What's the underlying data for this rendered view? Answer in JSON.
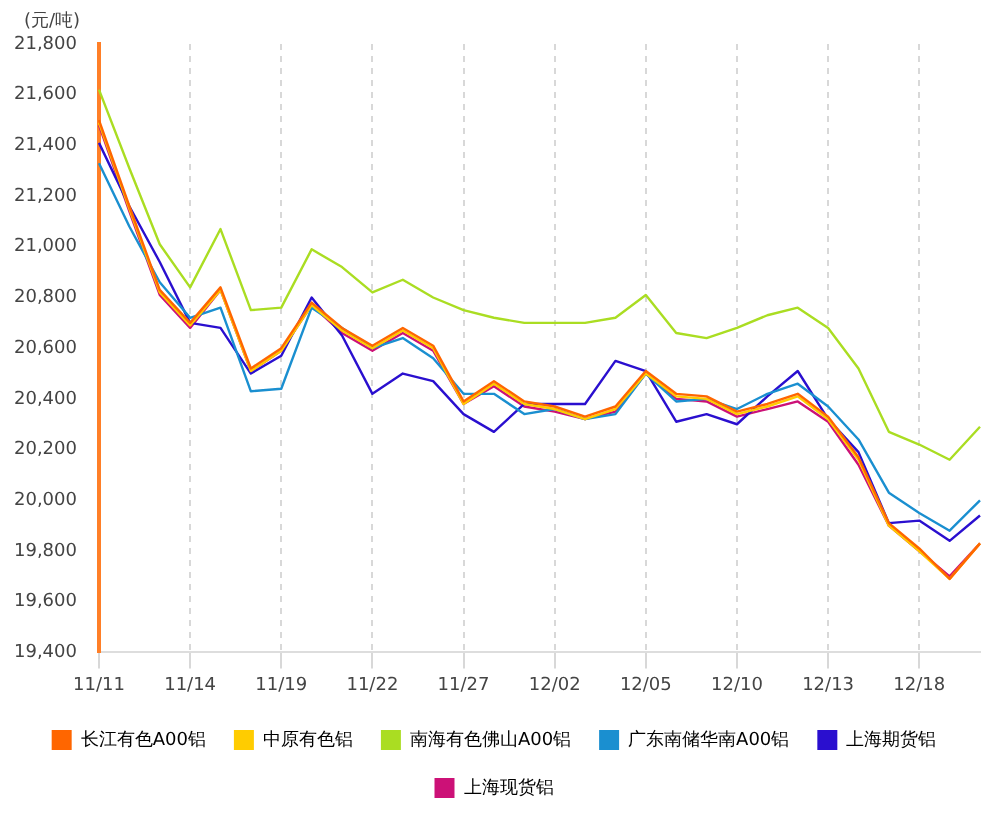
{
  "chart_data": {
    "type": "line",
    "ylabel": "(元/吨)",
    "categories": [
      "11/11",
      null,
      null,
      "11/14",
      null,
      null,
      "11/19",
      null,
      null,
      "11/22",
      null,
      null,
      "11/27",
      null,
      null,
      "12/02",
      null,
      null,
      "12/05",
      null,
      null,
      "12/10",
      null,
      null,
      "12/13",
      null,
      null,
      "12/18",
      null,
      null
    ],
    "series": [
      {
        "name": "长江有色A00铝",
        "color": "#ff6600",
        "values": [
          21500,
          21160,
          20830,
          20700,
          20840,
          20520,
          20600,
          20780,
          20680,
          20610,
          20680,
          20610,
          20390,
          20470,
          20390,
          20370,
          20330,
          20370,
          20510,
          20420,
          20410,
          20350,
          20380,
          20420,
          20330,
          20170,
          19910,
          19810,
          19690,
          19830
        ]
      },
      {
        "name": "中原有色铝",
        "color": "#ffcc00",
        "values": [
          21490,
          21150,
          20820,
          20690,
          20830,
          20510,
          20590,
          20770,
          20670,
          20600,
          20670,
          20600,
          20380,
          20460,
          20380,
          20360,
          20320,
          20360,
          20500,
          20410,
          20400,
          20340,
          20370,
          20410,
          20320,
          20160,
          19900,
          19800,
          19690,
          19830
        ]
      },
      {
        "name": "南海有色佛山A00铝",
        "color": "#aadd22",
        "values": [
          21620,
          21310,
          21010,
          20840,
          21070,
          20750,
          20760,
          20990,
          20920,
          20820,
          20870,
          20800,
          20750,
          20720,
          20700,
          20700,
          20700,
          20720,
          20810,
          20660,
          20640,
          20680,
          20730,
          20760,
          20680,
          20520,
          20270,
          20220,
          20160,
          20290
        ]
      },
      {
        "name": "广东南储华南A00铝",
        "color": "#1a8fd0",
        "values": [
          21330,
          21080,
          20860,
          20720,
          20760,
          20430,
          20440,
          20760,
          20680,
          20600,
          20640,
          20560,
          20420,
          20420,
          20340,
          20360,
          20320,
          20340,
          20500,
          20390,
          20400,
          20360,
          20420,
          20460,
          20370,
          20240,
          20030,
          19950,
          19880,
          20000
        ]
      },
      {
        "name": "上海期货铝",
        "color": "#2a0fcf",
        "values": [
          21410,
          21160,
          20940,
          20700,
          20680,
          20500,
          20570,
          20800,
          20650,
          20420,
          20500,
          20470,
          20340,
          20270,
          20380,
          20380,
          20380,
          20550,
          20510,
          20310,
          20340,
          20300,
          20410,
          20510,
          20320,
          20190,
          19910,
          19920,
          19840,
          19940
        ]
      },
      {
        "name": "上海现货铝",
        "color": "#cc1177",
        "values": [
          21480,
          21140,
          20810,
          20680,
          20830,
          20510,
          20590,
          20770,
          20660,
          20590,
          20660,
          20590,
          20380,
          20450,
          20370,
          20350,
          20320,
          20350,
          20500,
          20400,
          20390,
          20330,
          20360,
          20390,
          20310,
          20140,
          19900,
          19800,
          19700,
          19830
        ]
      }
    ],
    "ylim": [
      19400,
      21800
    ],
    "yticks": [
      {
        "value": 19400,
        "label": "19,400"
      },
      {
        "value": 19600,
        "label": "19,600"
      },
      {
        "value": 19800,
        "label": "19,800"
      },
      {
        "value": 20000,
        "label": "20,000"
      },
      {
        "value": 20200,
        "label": "20,200"
      },
      {
        "value": 20400,
        "label": "20,400"
      },
      {
        "value": 20600,
        "label": "20,600"
      },
      {
        "value": 20800,
        "label": "20,800"
      },
      {
        "value": 21000,
        "label": "21,000"
      },
      {
        "value": 21200,
        "label": "21,200"
      },
      {
        "value": 21400,
        "label": "21,400"
      },
      {
        "value": 21600,
        "label": "21,600"
      },
      {
        "value": 21800,
        "label": "21,800"
      }
    ],
    "grid": "x",
    "legend": "bottom",
    "marker": "none",
    "line_style": "solid"
  }
}
